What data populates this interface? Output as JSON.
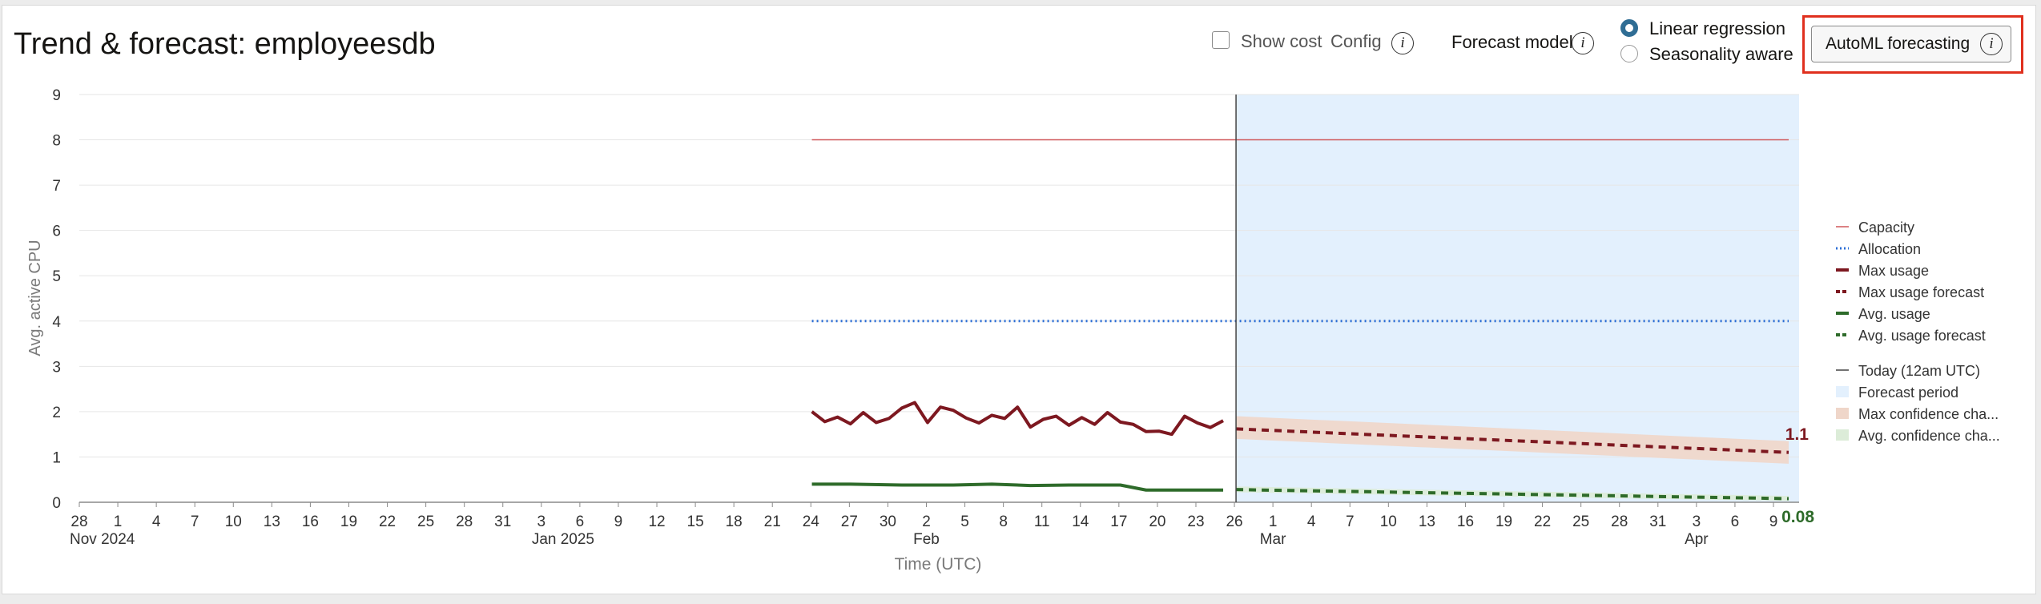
{
  "header": {
    "title": "Trend & forecast: employeesdb",
    "show_cost_label": "Show cost",
    "config_label": "Config",
    "forecast_model_label": "Forecast model",
    "radio_linear": "Linear regression",
    "radio_seasonality": "Seasonality aware",
    "selected_model": "Linear regression",
    "automl_label": "AutoML forecasting"
  },
  "chart_data": {
    "type": "line",
    "ylabel": "Avg. active CPU",
    "xlabel": "Time (UTC)",
    "ylim": [
      0,
      9
    ],
    "yticks": [
      "0",
      "1",
      "2",
      "3",
      "4",
      "5",
      "6",
      "7",
      "8",
      "9"
    ],
    "grid": true,
    "xticks": [
      {
        "label": "28",
        "group": "Nov 2024"
      },
      {
        "label": "1",
        "group": ""
      },
      {
        "label": "4",
        "group": ""
      },
      {
        "label": "7",
        "group": ""
      },
      {
        "label": "10",
        "group": ""
      },
      {
        "label": "13",
        "group": ""
      },
      {
        "label": "16",
        "group": ""
      },
      {
        "label": "19",
        "group": ""
      },
      {
        "label": "22",
        "group": ""
      },
      {
        "label": "25",
        "group": ""
      },
      {
        "label": "28",
        "group": ""
      },
      {
        "label": "31",
        "group": ""
      },
      {
        "label": "3",
        "group": "Jan 2025"
      },
      {
        "label": "6",
        "group": ""
      },
      {
        "label": "9",
        "group": ""
      },
      {
        "label": "12",
        "group": ""
      },
      {
        "label": "15",
        "group": ""
      },
      {
        "label": "18",
        "group": ""
      },
      {
        "label": "21",
        "group": ""
      },
      {
        "label": "24",
        "group": ""
      },
      {
        "label": "27",
        "group": ""
      },
      {
        "label": "30",
        "group": ""
      },
      {
        "label": "2",
        "group": "Feb"
      },
      {
        "label": "5",
        "group": ""
      },
      {
        "label": "8",
        "group": ""
      },
      {
        "label": "11",
        "group": ""
      },
      {
        "label": "14",
        "group": ""
      },
      {
        "label": "17",
        "group": ""
      },
      {
        "label": "20",
        "group": ""
      },
      {
        "label": "23",
        "group": ""
      },
      {
        "label": "26",
        "group": ""
      },
      {
        "label": "1",
        "group": "Mar"
      },
      {
        "label": "4",
        "group": ""
      },
      {
        "label": "7",
        "group": ""
      },
      {
        "label": "10",
        "group": ""
      },
      {
        "label": "13",
        "group": ""
      },
      {
        "label": "16",
        "group": ""
      },
      {
        "label": "19",
        "group": ""
      },
      {
        "label": "22",
        "group": ""
      },
      {
        "label": "25",
        "group": ""
      },
      {
        "label": "28",
        "group": ""
      },
      {
        "label": "31",
        "group": ""
      },
      {
        "label": "3",
        "group": "Apr"
      },
      {
        "label": "6",
        "group": ""
      },
      {
        "label": "9",
        "group": ""
      }
    ],
    "today_label": "Today (12am UTC)",
    "today_date": "2025-02-26",
    "forecast_period": [
      "2025-02-26",
      "2025-04-10"
    ],
    "series": [
      {
        "name": "Capacity",
        "style": "solid-thin",
        "color": "#d0585a",
        "x": [
          "2025-01-24",
          "2025-04-10"
        ],
        "y": [
          8,
          8
        ]
      },
      {
        "name": "Allocation",
        "style": "dotted",
        "color": "#2b6ed6",
        "x": [
          "2025-01-24",
          "2025-04-10"
        ],
        "y": [
          4,
          4
        ]
      },
      {
        "name": "Max usage",
        "style": "solid",
        "color": "#7d1820",
        "x": [
          "2025-01-24",
          "2025-01-25",
          "2025-01-26",
          "2025-01-27",
          "2025-01-28",
          "2025-01-29",
          "2025-01-30",
          "2025-01-31",
          "2025-02-01",
          "2025-02-02",
          "2025-02-03",
          "2025-02-04",
          "2025-02-05",
          "2025-02-06",
          "2025-02-07",
          "2025-02-08",
          "2025-02-09",
          "2025-02-10",
          "2025-02-11",
          "2025-02-12",
          "2025-02-13",
          "2025-02-14",
          "2025-02-15",
          "2025-02-16",
          "2025-02-17",
          "2025-02-18",
          "2025-02-19",
          "2025-02-20",
          "2025-02-21",
          "2025-02-22",
          "2025-02-23",
          "2025-02-24",
          "2025-02-25"
        ],
        "y": [
          2.0,
          1.78,
          1.88,
          1.73,
          1.98,
          1.76,
          1.85,
          2.08,
          2.2,
          1.76,
          2.1,
          2.03,
          1.86,
          1.75,
          1.92,
          1.85,
          2.1,
          1.66,
          1.83,
          1.9,
          1.7,
          1.87,
          1.72,
          1.98,
          1.77,
          1.72,
          1.56,
          1.57,
          1.5,
          1.9,
          1.75,
          1.65,
          1.8
        ]
      },
      {
        "name": "Max usage forecast",
        "style": "dashed",
        "color": "#7d1820",
        "x": [
          "2025-02-26",
          "2025-04-10"
        ],
        "y": [
          1.62,
          1.1
        ]
      },
      {
        "name": "Avg. usage",
        "style": "solid",
        "color": "#2e6b2a",
        "x": [
          "2025-01-24",
          "2025-01-27",
          "2025-01-31",
          "2025-02-04",
          "2025-02-07",
          "2025-02-10",
          "2025-02-13",
          "2025-02-17",
          "2025-02-19",
          "2025-02-22",
          "2025-02-25"
        ],
        "y": [
          0.4,
          0.4,
          0.38,
          0.38,
          0.4,
          0.37,
          0.38,
          0.38,
          0.27,
          0.27,
          0.27
        ]
      },
      {
        "name": "Avg. usage forecast",
        "style": "dashed",
        "color": "#2e6b2a",
        "x": [
          "2025-02-26",
          "2025-04-10"
        ],
        "y": [
          0.28,
          0.08
        ]
      }
    ],
    "confidence_bands": [
      {
        "name": "Max confidence cha...",
        "color": "#efd6c9",
        "x": [
          "2025-02-26",
          "2025-04-10"
        ],
        "upper": [
          1.9,
          1.35
        ],
        "lower": [
          1.4,
          0.85
        ]
      },
      {
        "name": "Avg. confidence cha...",
        "color": "#dcecd8",
        "x": [
          "2025-02-26",
          "2025-04-10"
        ],
        "upper": [
          0.35,
          0.14
        ],
        "lower": [
          0.22,
          0.03
        ]
      }
    ],
    "end_labels": [
      {
        "text": "1.1",
        "color": "#7d1820"
      },
      {
        "text": "0.08",
        "color": "#2e6b2a"
      }
    ],
    "legend_position": "right",
    "legend": [
      {
        "label": "Capacity",
        "kind": "line-thin",
        "color": "#d0585a"
      },
      {
        "label": "Allocation",
        "kind": "dotted",
        "color": "#2b6ed6"
      },
      {
        "label": "Max usage",
        "kind": "line-thick",
        "color": "#7d1820"
      },
      {
        "label": "Max usage forecast",
        "kind": "dashed",
        "color": "#7d1820"
      },
      {
        "label": "Avg. usage",
        "kind": "line-thick",
        "color": "#2e6b2a"
      },
      {
        "label": "Avg. usage forecast",
        "kind": "dashed",
        "color": "#2e6b2a"
      },
      {
        "label": "Today (12am UTC)",
        "kind": "line-thin",
        "color": "#444444"
      },
      {
        "label": "Forecast period",
        "kind": "swatch",
        "color": "#e3f0fd"
      },
      {
        "label": "Max confidence cha...",
        "kind": "swatch",
        "color": "#efd6c9"
      },
      {
        "label": "Avg. confidence cha...",
        "kind": "swatch",
        "color": "#dcecd8"
      }
    ]
  }
}
